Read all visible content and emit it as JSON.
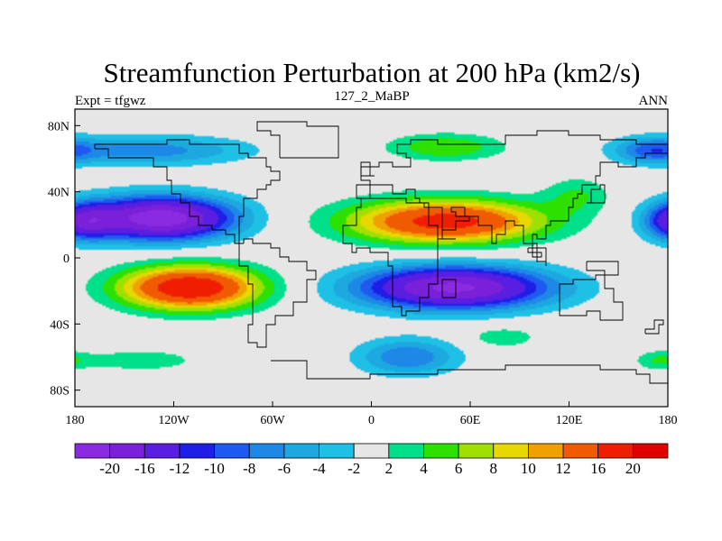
{
  "title": "Streamfunction Perturbation at 200 hPa (km2/s)",
  "left_string": "Expt = tfgwz",
  "center_string": "127_2_MaBP",
  "right_string": "ANN",
  "map": {
    "lon_range": [
      -180,
      180
    ],
    "lat_range": [
      -90,
      90
    ],
    "x_ticks": [
      {
        "value": -180,
        "label": "180"
      },
      {
        "value": -120,
        "label": "120W"
      },
      {
        "value": -60,
        "label": "60W"
      },
      {
        "value": 0,
        "label": "0"
      },
      {
        "value": 60,
        "label": "60E"
      },
      {
        "value": 120,
        "label": "120E"
      },
      {
        "value": 180,
        "label": "180"
      }
    ],
    "y_ticks": [
      {
        "value": 80,
        "label": "80N"
      },
      {
        "value": 40,
        "label": "40N"
      },
      {
        "value": 0,
        "label": "0"
      },
      {
        "value": -40,
        "label": "40S"
      },
      {
        "value": -80,
        "label": "80S"
      }
    ],
    "features": [
      {
        "name": "subtropical-low-north-pacific",
        "lon": -128,
        "lat": 24,
        "rx": 44,
        "ry": 13,
        "amp": -23
      },
      {
        "name": "subtropical-high-south-pacific",
        "lon": -110,
        "lat": -18,
        "rx": 42,
        "ry": 13,
        "amp": 20
      },
      {
        "name": "subtropical-high-eurasia",
        "lon": 45,
        "lat": 22,
        "rx": 58,
        "ry": 13,
        "amp": 18
      },
      {
        "name": "subtropical-low-south-atlantic-indian",
        "lon": 50,
        "lat": -18,
        "rx": 58,
        "ry": 13,
        "amp": -21
      },
      {
        "name": "low-north-atlantic",
        "lon": -135,
        "lat": 65,
        "rx": 60,
        "ry": 9,
        "amp": -7
      },
      {
        "name": "high-north-eurasia",
        "lon": 45,
        "lat": 67,
        "rx": 35,
        "ry": 8,
        "amp": 6
      },
      {
        "name": "low-southern-ocean",
        "lon": 22,
        "lat": -60,
        "rx": 30,
        "ry": 11,
        "amp": -8
      },
      {
        "name": "high-south-pacific",
        "lon": -140,
        "lat": -62,
        "rx": 32,
        "ry": 6,
        "amp": 4
      },
      {
        "name": "low-dateline-north",
        "lon": 185,
        "lat": 22,
        "rx": 18,
        "ry": 11,
        "amp": -12
      },
      {
        "name": "low-arctic-northeast",
        "lon": 170,
        "lat": 65,
        "rx": 22,
        "ry": 8,
        "amp": -7
      },
      {
        "name": "high-southern-indian",
        "lon": 80,
        "lat": -48,
        "rx": 20,
        "ry": 6,
        "amp": 4
      },
      {
        "name": "high-southeast-pacific",
        "lon": 175,
        "lat": -62,
        "rx": 15,
        "ry": 6,
        "amp": 4
      },
      {
        "name": "high-east-asia",
        "lon": 125,
        "lat": 38,
        "rx": 20,
        "ry": 11,
        "amp": 4
      }
    ]
  },
  "colorbar": {
    "labels": [
      "-20",
      "-16",
      "-12",
      "-10",
      "-8",
      "-6",
      "-4",
      "-2",
      "2",
      "4",
      "6",
      "8",
      "10",
      "12",
      "16",
      "20"
    ],
    "levels": [
      -20,
      -16,
      -12,
      -10,
      -8,
      -6,
      -4,
      -2,
      2,
      4,
      6,
      8,
      10,
      12,
      16,
      20
    ],
    "colors": [
      "#8A2BE2",
      "#7A20D8",
      "#5A1EE0",
      "#1E1EE6",
      "#1E5AF0",
      "#1E88E6",
      "#1EA8E0",
      "#1EC0E6",
      "#E6E6E6",
      "#00E08A",
      "#2EE000",
      "#A0E000",
      "#E6D800",
      "#F0A000",
      "#F05A00",
      "#F01E00",
      "#E00000"
    ]
  }
}
